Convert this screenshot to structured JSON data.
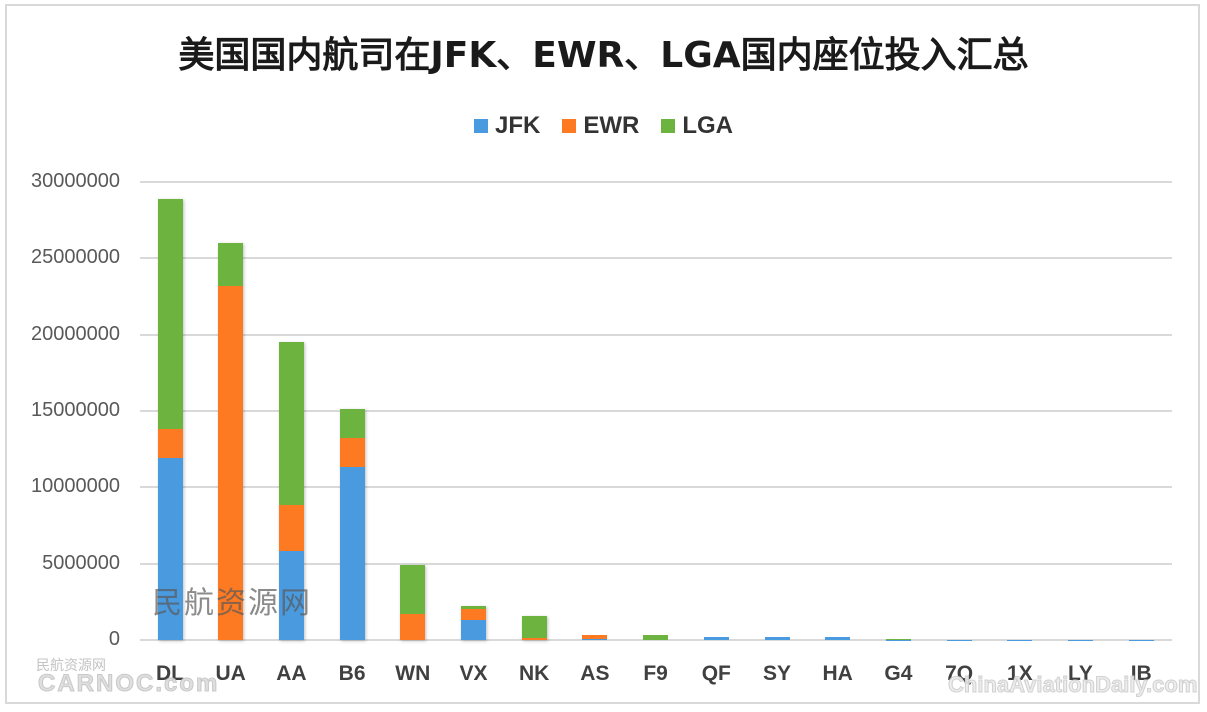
{
  "title": "美国国内航司在JFK、EWR、LGA国内座位投入汇总",
  "legend": [
    {
      "label": "JFK",
      "color": "#4a9ae0"
    },
    {
      "label": "EWR",
      "color": "#fd7a22"
    },
    {
      "label": "LGA",
      "color": "#6db33f"
    }
  ],
  "y_ticks": [
    "30000000",
    "25000000",
    "20000000",
    "15000000",
    "10000000",
    "5000000",
    "0"
  ],
  "watermarks": {
    "center": "民航资源网",
    "bottom_left_small": "民航资源网",
    "bottom_left": "CARNOC.com",
    "bottom_right": "ChinaAviationDaily.com"
  },
  "chart_data": {
    "type": "bar",
    "stacked": true,
    "title": "美国国内航司在JFK、EWR、LGA国内座位投入汇总",
    "xlabel": "",
    "ylabel": "",
    "ylim": [
      0,
      30000000
    ],
    "grid": true,
    "legend_position": "top",
    "categories": [
      "DL",
      "UA",
      "AA",
      "B6",
      "WN",
      "VX",
      "NK",
      "AS",
      "F9",
      "QF",
      "SY",
      "HA",
      "G4",
      "7Q",
      "1X",
      "LY",
      "IB"
    ],
    "series": [
      {
        "name": "JFK",
        "color": "#4a9ae0",
        "values": [
          11900000,
          0,
          5800000,
          11300000,
          0,
          1300000,
          0,
          50000,
          0,
          200000,
          200000,
          200000,
          20000,
          10000,
          10000,
          10000,
          10000
        ]
      },
      {
        "name": "EWR",
        "color": "#fd7a22",
        "values": [
          1900000,
          23200000,
          3050000,
          1900000,
          1700000,
          700000,
          100000,
          300000,
          0,
          0,
          0,
          0,
          10000,
          0,
          0,
          0,
          0
        ]
      },
      {
        "name": "LGA",
        "color": "#6db33f",
        "values": [
          15100000,
          2800000,
          10650000,
          1900000,
          3200000,
          200000,
          1500000,
          0,
          300000,
          0,
          0,
          0,
          10000,
          0,
          0,
          0,
          0
        ]
      }
    ]
  }
}
